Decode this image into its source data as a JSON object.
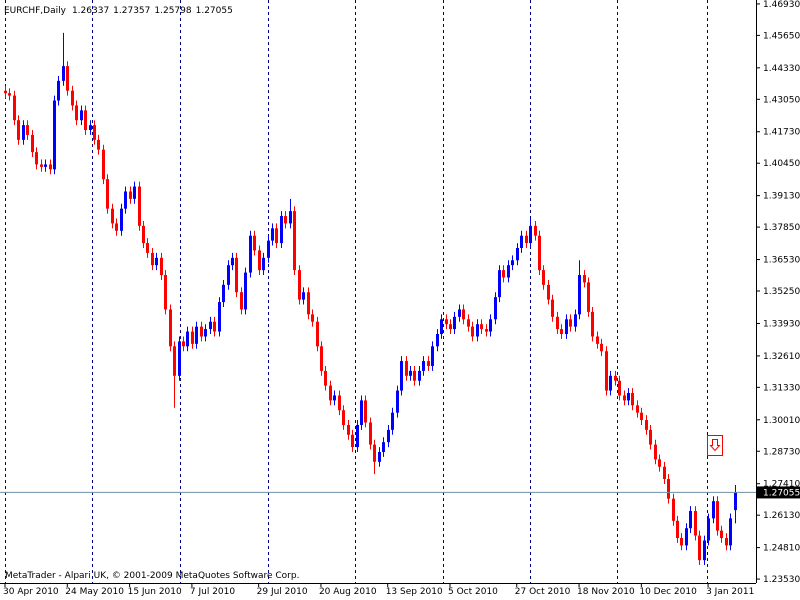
{
  "chart_data": {
    "type": "candlestick",
    "title": "EURCHF,Daily",
    "footer": "MetaTrader - Alpari UK, © 2001-2009 MetaQuotes Software Corp.",
    "up_color": "#0000ff",
    "down_color": "#ff0000",
    "categories": [
      "30 Apr 2010",
      null,
      null,
      null,
      null,
      null,
      null,
      null,
      null,
      null,
      null,
      null,
      null,
      null,
      "24 May 2010",
      null,
      null,
      null,
      null,
      null,
      null,
      null,
      null,
      null,
      null,
      null,
      null,
      null,
      "15 Jun 2010",
      null,
      null,
      null,
      null,
      null,
      null,
      null,
      null,
      null,
      null,
      null,
      null,
      null,
      "7 Jul 2010",
      null,
      null,
      null,
      null,
      null,
      null,
      null,
      null,
      null,
      null,
      null,
      null,
      null,
      null,
      "29 Jul 2010",
      null,
      null,
      null,
      null,
      null,
      null,
      null,
      null,
      null,
      null,
      null,
      null,
      null,
      "20 Aug 2010",
      null,
      null,
      null,
      null,
      null,
      null,
      null,
      null,
      null,
      null,
      null,
      null,
      null,
      null,
      "13 Sep 2010",
      null,
      null,
      null,
      null,
      null,
      null,
      null,
      null,
      null,
      null,
      null,
      null,
      null,
      "5 Oct 2010",
      null,
      null,
      null,
      null,
      null,
      null,
      null,
      null,
      null,
      null,
      null,
      null,
      null,
      null,
      "27 Oct 2010",
      null,
      null,
      null,
      null,
      null,
      null,
      null,
      null,
      null,
      null,
      null,
      null,
      null,
      "18 Nov 2010",
      null,
      null,
      null,
      null,
      null,
      null,
      null,
      null,
      null,
      null,
      null,
      null,
      null,
      "10 Dec 2010",
      null,
      null,
      null,
      null,
      null,
      null,
      null,
      null,
      null,
      null,
      null,
      null,
      null,
      null,
      "3 Jan 2011",
      null,
      null,
      null,
      null,
      null,
      null
    ],
    "open": [
      1.434,
      1.433,
      1.432,
      1.422,
      1.414,
      1.42,
      1.416,
      1.409,
      1.404,
      1.403,
      1.404,
      1.402,
      1.43,
      1.438,
      1.444,
      1.434,
      1.428,
      1.422,
      1.426,
      1.418,
      1.42,
      1.414,
      1.41,
      1.398,
      1.386,
      1.38,
      1.377,
      1.386,
      1.393,
      1.39,
      1.395,
      1.379,
      1.372,
      1.368,
      1.363,
      1.366,
      1.359,
      1.345,
      1.33,
      1.318,
      1.332,
      1.33,
      1.336,
      1.331,
      1.338,
      1.334,
      1.337,
      1.34,
      1.336,
      1.348,
      1.355,
      1.363,
      1.366,
      1.352,
      1.345,
      1.36,
      1.375,
      1.369,
      1.361,
      1.366,
      1.373,
      1.378,
      1.372,
      1.383,
      1.38,
      1.385,
      1.361,
      1.349,
      1.352,
      1.343,
      1.34,
      1.33,
      1.32,
      1.314,
      1.308,
      1.31,
      1.304,
      1.298,
      1.294,
      1.289,
      1.298,
      1.308,
      1.299,
      1.29,
      1.283,
      1.287,
      1.291,
      1.296,
      1.303,
      1.312,
      1.324,
      1.318,
      1.32,
      1.316,
      1.32,
      1.324,
      1.322,
      1.33,
      1.335,
      1.341,
      1.339,
      1.337,
      1.342,
      1.345,
      1.341,
      1.338,
      1.334,
      1.339,
      1.337,
      1.336,
      1.341,
      1.35,
      1.361,
      1.358,
      1.363,
      1.365,
      1.37,
      1.375,
      1.372,
      1.379,
      1.375,
      1.361,
      1.355,
      1.349,
      1.342,
      1.337,
      1.335,
      1.341,
      1.338,
      1.343,
      1.359,
      1.356,
      1.344,
      1.334,
      1.331,
      1.328,
      1.312,
      1.318,
      1.316,
      1.31,
      1.308,
      1.311,
      1.306,
      1.303,
      1.3,
      1.296,
      1.29,
      1.284,
      1.281,
      1.276,
      1.268,
      1.259,
      1.252,
      1.249,
      1.256,
      1.263,
      1.253,
      1.243,
      1.251,
      1.26,
      1.267,
      1.255,
      1.252,
      1.249,
      1.26337
    ],
    "high": [
      1.436,
      1.435,
      1.434,
      1.424,
      1.422,
      1.422,
      1.418,
      1.411,
      1.406,
      1.406,
      1.406,
      1.432,
      1.44,
      1.4575,
      1.446,
      1.436,
      1.43,
      1.428,
      1.428,
      1.422,
      1.422,
      1.416,
      1.412,
      1.4,
      1.388,
      1.382,
      1.388,
      1.395,
      1.395,
      1.397,
      1.397,
      1.381,
      1.374,
      1.37,
      1.368,
      1.368,
      1.361,
      1.347,
      1.332,
      1.334,
      1.334,
      1.338,
      1.338,
      1.34,
      1.34,
      1.339,
      1.342,
      1.342,
      1.35,
      1.357,
      1.365,
      1.368,
      1.368,
      1.354,
      1.362,
      1.377,
      1.377,
      1.371,
      1.368,
      1.375,
      1.38,
      1.38,
      1.385,
      1.385,
      1.39,
      1.387,
      1.363,
      1.354,
      1.354,
      1.345,
      1.342,
      1.332,
      1.322,
      1.316,
      1.312,
      1.312,
      1.306,
      1.3,
      1.296,
      1.3,
      1.31,
      1.31,
      1.301,
      1.292,
      1.289,
      1.293,
      1.298,
      1.305,
      1.314,
      1.326,
      1.326,
      1.322,
      1.322,
      1.322,
      1.326,
      1.326,
      1.332,
      1.337,
      1.343,
      1.343,
      1.341,
      1.344,
      1.347,
      1.347,
      1.343,
      1.34,
      1.341,
      1.341,
      1.339,
      1.343,
      1.352,
      1.363,
      1.363,
      1.365,
      1.367,
      1.372,
      1.377,
      1.377,
      1.382,
      1.381,
      1.377,
      1.363,
      1.357,
      1.351,
      1.344,
      1.339,
      1.343,
      1.343,
      1.345,
      1.365,
      1.361,
      1.358,
      1.346,
      1.336,
      1.333,
      1.33,
      1.32,
      1.32,
      1.318,
      1.312,
      1.313,
      1.313,
      1.308,
      1.305,
      1.302,
      1.298,
      1.292,
      1.286,
      1.283,
      1.278,
      1.27,
      1.261,
      1.254,
      1.258,
      1.265,
      1.265,
      1.255,
      1.253,
      1.262,
      1.269,
      1.269,
      1.257,
      1.254,
      1.262,
      1.27357
    ],
    "low": [
      1.431,
      1.43,
      1.42,
      1.412,
      1.412,
      1.414,
      1.407,
      1.402,
      1.401,
      1.401,
      1.4,
      1.4,
      1.428,
      1.436,
      1.432,
      1.426,
      1.42,
      1.42,
      1.416,
      1.416,
      1.412,
      1.408,
      1.396,
      1.384,
      1.378,
      1.375,
      1.375,
      1.384,
      1.388,
      1.388,
      1.377,
      1.37,
      1.366,
      1.361,
      1.361,
      1.357,
      1.343,
      1.328,
      1.305,
      1.316,
      1.328,
      1.328,
      1.329,
      1.329,
      1.332,
      1.332,
      1.335,
      1.334,
      1.334,
      1.346,
      1.353,
      1.361,
      1.35,
      1.343,
      1.343,
      1.358,
      1.367,
      1.359,
      1.359,
      1.364,
      1.371,
      1.37,
      1.37,
      1.378,
      1.378,
      1.359,
      1.347,
      1.347,
      1.341,
      1.338,
      1.328,
      1.318,
      1.312,
      1.306,
      1.306,
      1.302,
      1.296,
      1.292,
      1.287,
      1.287,
      1.296,
      1.297,
      1.288,
      1.278,
      1.281,
      1.285,
      1.289,
      1.294,
      1.301,
      1.31,
      1.316,
      1.316,
      1.314,
      1.314,
      1.318,
      1.32,
      1.32,
      1.328,
      1.333,
      1.337,
      1.335,
      1.335,
      1.34,
      1.339,
      1.336,
      1.332,
      1.332,
      1.335,
      1.334,
      1.334,
      1.339,
      1.348,
      1.356,
      1.356,
      1.361,
      1.363,
      1.368,
      1.37,
      1.37,
      1.373,
      1.359,
      1.353,
      1.347,
      1.34,
      1.335,
      1.333,
      1.333,
      1.336,
      1.336,
      1.341,
      1.354,
      1.342,
      1.332,
      1.329,
      1.326,
      1.31,
      1.31,
      1.314,
      1.308,
      1.306,
      1.306,
      1.304,
      1.301,
      1.298,
      1.294,
      1.288,
      1.282,
      1.279,
      1.274,
      1.266,
      1.257,
      1.25,
      1.247,
      1.247,
      1.254,
      1.251,
      1.241,
      1.241,
      1.249,
      1.258,
      1.253,
      1.25,
      1.247,
      1.247,
      1.25798
    ],
    "close": [
      1.433,
      1.432,
      1.422,
      1.414,
      1.42,
      1.416,
      1.409,
      1.404,
      1.403,
      1.404,
      1.402,
      1.43,
      1.438,
      1.444,
      1.434,
      1.428,
      1.422,
      1.426,
      1.418,
      1.42,
      1.414,
      1.41,
      1.398,
      1.386,
      1.38,
      1.377,
      1.386,
      1.393,
      1.39,
      1.395,
      1.379,
      1.372,
      1.368,
      1.363,
      1.366,
      1.359,
      1.345,
      1.33,
      1.318,
      1.332,
      1.33,
      1.336,
      1.331,
      1.338,
      1.334,
      1.337,
      1.34,
      1.336,
      1.348,
      1.355,
      1.363,
      1.366,
      1.352,
      1.345,
      1.36,
      1.375,
      1.369,
      1.361,
      1.366,
      1.373,
      1.378,
      1.372,
      1.383,
      1.38,
      1.385,
      1.361,
      1.349,
      1.352,
      1.343,
      1.34,
      1.33,
      1.32,
      1.314,
      1.308,
      1.31,
      1.304,
      1.298,
      1.294,
      1.289,
      1.298,
      1.308,
      1.299,
      1.29,
      1.283,
      1.287,
      1.291,
      1.296,
      1.303,
      1.312,
      1.324,
      1.318,
      1.32,
      1.316,
      1.32,
      1.324,
      1.322,
      1.33,
      1.335,
      1.341,
      1.339,
      1.337,
      1.342,
      1.345,
      1.341,
      1.338,
      1.334,
      1.339,
      1.337,
      1.336,
      1.341,
      1.35,
      1.361,
      1.358,
      1.363,
      1.365,
      1.37,
      1.375,
      1.372,
      1.379,
      1.375,
      1.361,
      1.355,
      1.349,
      1.342,
      1.337,
      1.335,
      1.341,
      1.338,
      1.343,
      1.359,
      1.356,
      1.344,
      1.334,
      1.331,
      1.328,
      1.312,
      1.318,
      1.316,
      1.31,
      1.308,
      1.311,
      1.306,
      1.303,
      1.3,
      1.296,
      1.29,
      1.284,
      1.281,
      1.276,
      1.268,
      1.259,
      1.252,
      1.249,
      1.256,
      1.263,
      1.253,
      1.243,
      1.251,
      1.26,
      1.267,
      1.255,
      1.252,
      1.249,
      1.26,
      1.27055
    ],
    "ylim": [
      1.2337,
      1.4709
    ],
    "yticks": [
      {
        "value": 1.4693,
        "label": "1.46930"
      },
      {
        "value": 1.4565,
        "label": "1.45650"
      },
      {
        "value": 1.4433,
        "label": "1.44330"
      },
      {
        "value": 1.4305,
        "label": "1.43050"
      },
      {
        "value": 1.4173,
        "label": "1.41730"
      },
      {
        "value": 1.4045,
        "label": "1.40450"
      },
      {
        "value": 1.3913,
        "label": "1.39130"
      },
      {
        "value": 1.3785,
        "label": "1.37850"
      },
      {
        "value": 1.3653,
        "label": "1.36530"
      },
      {
        "value": 1.3525,
        "label": "1.35250"
      },
      {
        "value": 1.3393,
        "label": "1.33930"
      },
      {
        "value": 1.3261,
        "label": "1.32610"
      },
      {
        "value": 1.3133,
        "label": "1.31330"
      },
      {
        "value": 1.3001,
        "label": "1.30010"
      },
      {
        "value": 1.2873,
        "label": "1.28730"
      },
      {
        "value": 1.2741,
        "label": "1.27410"
      },
      {
        "value": 1.2613,
        "label": "1.26130"
      },
      {
        "value": 1.2481,
        "label": "1.24810"
      },
      {
        "value": 1.2353,
        "label": "1.23530"
      }
    ]
  }
}
